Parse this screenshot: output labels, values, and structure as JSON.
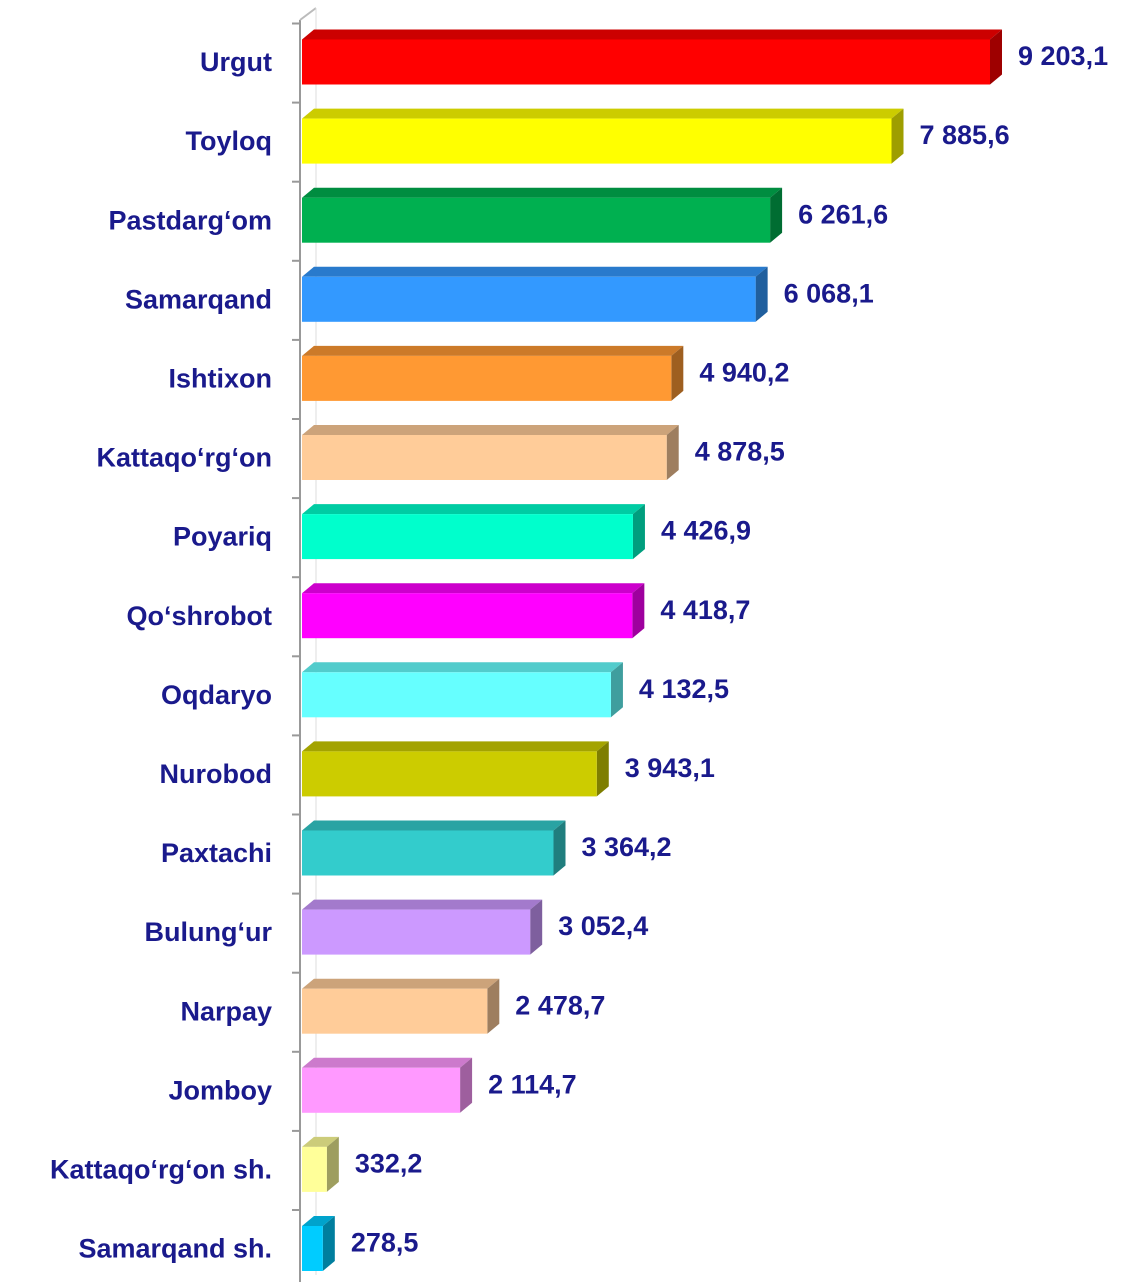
{
  "chart_data": {
    "type": "bar3d_horizontal",
    "categories": [
      "Urgut",
      "Toyloq",
      "Pastdarg‘om",
      "Samarqand",
      "Ishtixon",
      "Kattaqo‘rg‘on",
      "Poyariq",
      "Qo‘shrobot",
      "Oqdaryo",
      "Nurobod",
      "Paxtachi",
      "Bulung‘ur",
      "Narpay",
      "Jomboy",
      "Kattaqo‘rg‘on sh.",
      "Samarqand sh."
    ],
    "values": [
      9203.1,
      7885.6,
      6261.6,
      6068.1,
      4940.2,
      4878.5,
      4426.9,
      4418.7,
      4132.5,
      3943.1,
      3364.2,
      3052.4,
      2478.7,
      2114.7,
      332.2,
      278.5
    ],
    "value_labels": [
      "9 203,1",
      "7 885,6",
      "6 261,6",
      "6 068,1",
      "4 940,2",
      "4 878,5",
      "4 426,9",
      "4 418,7",
      "4 132,5",
      "3 943,1",
      "3 364,2",
      "3 052,4",
      "2 478,7",
      "2 114,7",
      "332,2",
      "278,5"
    ],
    "colors": [
      "#ff0000",
      "#ffff00",
      "#00b050",
      "#3399ff",
      "#ff9933",
      "#ffcc99",
      "#00ffcc",
      "#ff00ff",
      "#66ffff",
      "#cccc00",
      "#33cccc",
      "#cc99ff",
      "#ffcc99",
      "#ff99ff",
      "#ffff99",
      "#00ccff"
    ]
  }
}
